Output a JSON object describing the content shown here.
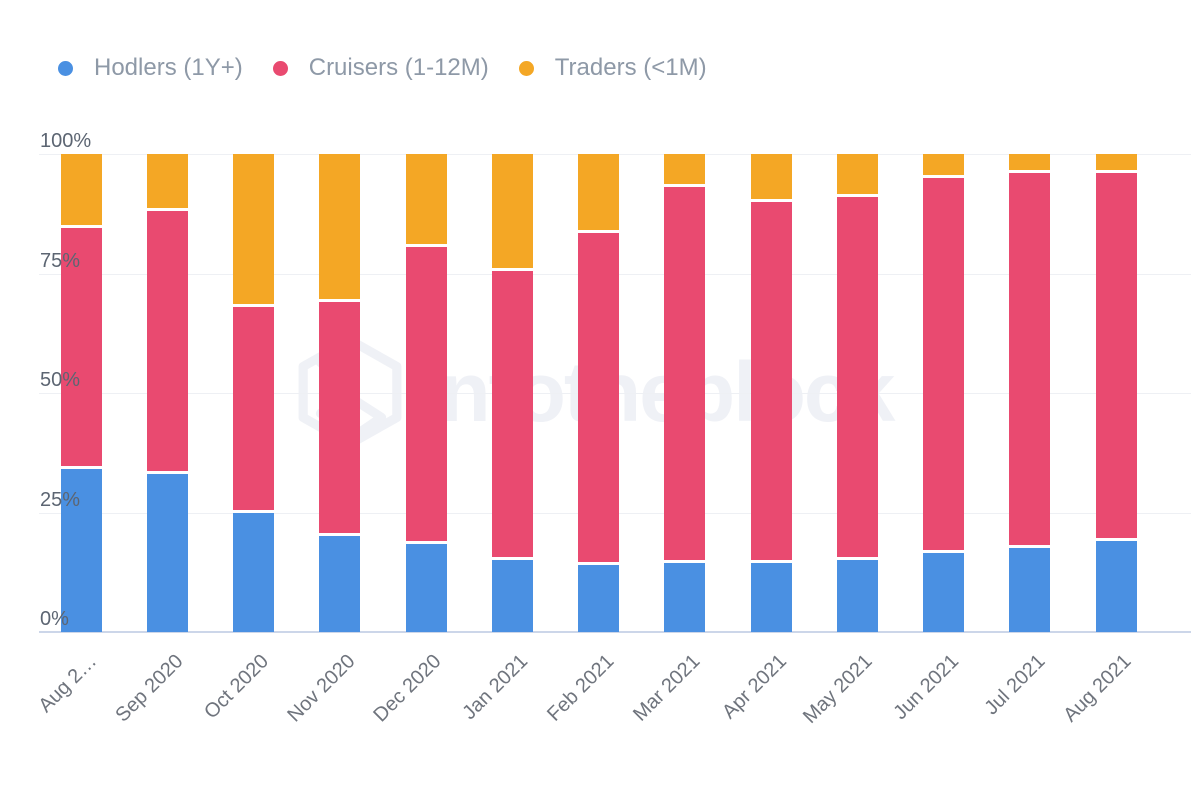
{
  "watermark": {
    "text": "intotheblock",
    "logo_icon": "intotheblock-hexagon-logo"
  },
  "chart_data": {
    "type": "bar",
    "stacked": true,
    "stacking": "percent",
    "title": "",
    "xlabel": "",
    "ylabel": "",
    "ylim": [
      0,
      100
    ],
    "grid": true,
    "legend_position": "top-left",
    "yticks": [
      "0%",
      "25%",
      "50%",
      "75%",
      "100%"
    ],
    "categories": [
      "Aug 2…",
      "Sep 2020",
      "Oct 2020",
      "Nov 2020",
      "Dec 2020",
      "Jan 2021",
      "Feb 2021",
      "Mar 2021",
      "Apr 2021",
      "May 2021",
      "Jun 2021",
      "Jul 2021",
      "Aug 2021"
    ],
    "series": [
      {
        "name": "Hodlers (1Y+)",
        "color": "#4a90e2",
        "values": [
          34,
          33,
          25,
          20,
          18.5,
          15,
          14,
          14.5,
          14.5,
          15,
          16.5,
          17.5,
          19
        ]
      },
      {
        "name": "Cruisers (1-12M)",
        "color": "#e94a70",
        "values": [
          50.5,
          55,
          43,
          49,
          62,
          60.5,
          69.5,
          78.5,
          75.5,
          76,
          78.5,
          78.5,
          77
        ]
      },
      {
        "name": "Traders (<1M)",
        "color": "#f4a725",
        "values": [
          15.5,
          12,
          32,
          31,
          19.5,
          24.5,
          16.5,
          7,
          10,
          9,
          5,
          4,
          4
        ]
      }
    ]
  },
  "colors": {
    "axis_line": "#ccd6e9",
    "gridline": "#eef0f4",
    "y_label": "#5c6572",
    "x_label": "#6f747d",
    "legend_text": "#8e99a7",
    "watermark": "#eff1f6",
    "background": "#ffffff"
  }
}
